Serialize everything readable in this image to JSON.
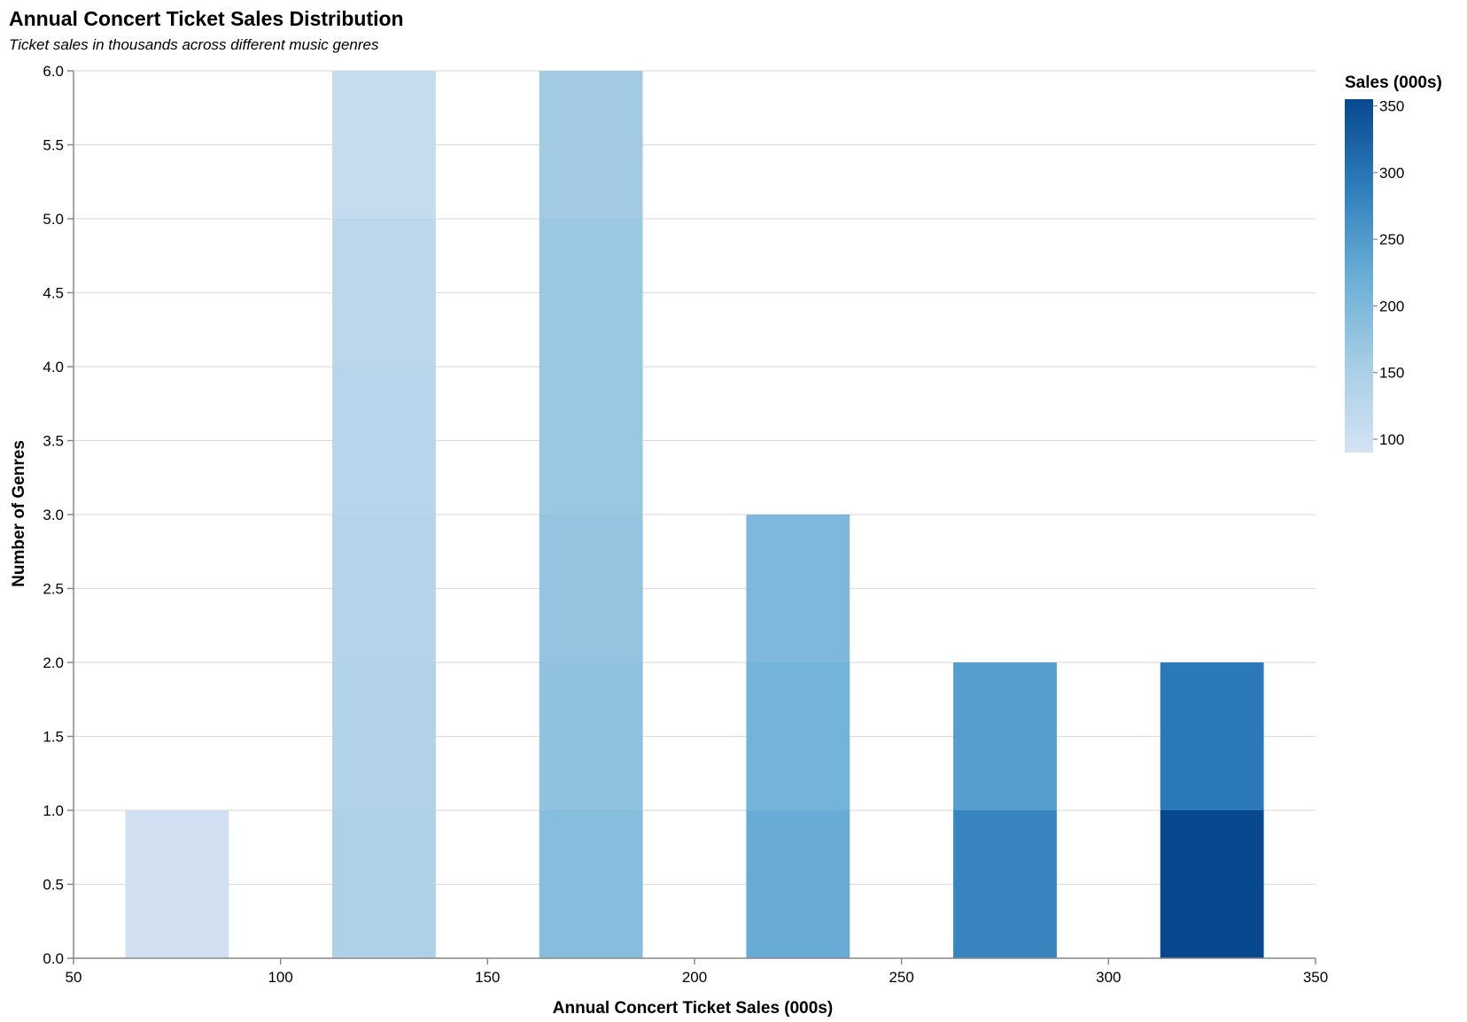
{
  "chart_data": {
    "type": "bar",
    "title": "Annual Concert Ticket Sales Distribution",
    "subtitle": "Ticket sales in thousands across different music genres",
    "xlabel": "Annual Concert Ticket Sales (000s)",
    "ylabel": "Number of Genres",
    "xlim": [
      50,
      350
    ],
    "ylim": [
      0,
      6
    ],
    "x_ticks": [
      "50",
      "100",
      "150",
      "200",
      "250",
      "300",
      "350"
    ],
    "y_ticks": [
      "0.0",
      "0.5",
      "1.0",
      "1.5",
      "2.0",
      "2.5",
      "3.0",
      "3.5",
      "4.0",
      "4.5",
      "5.0",
      "5.5",
      "6.0"
    ],
    "grid": "horizontal",
    "bins": [
      {
        "x_start": 50,
        "x_end": 100,
        "count": 1,
        "segment_sales": [
          95
        ]
      },
      {
        "x_start": 100,
        "x_end": 150,
        "count": 6,
        "segment_sales": [
          145,
          140,
          135,
          130,
          125,
          112
        ]
      },
      {
        "x_start": 150,
        "x_end": 200,
        "count": 6,
        "segment_sales": [
          190,
          180,
          175,
          170,
          168,
          160
        ]
      },
      {
        "x_start": 200,
        "x_end": 250,
        "count": 3,
        "segment_sales": [
          225,
          210,
          200
        ]
      },
      {
        "x_start": 250,
        "x_end": 300,
        "count": 2,
        "segment_sales": [
          280,
          245
        ]
      },
      {
        "x_start": 300,
        "x_end": 350,
        "count": 2,
        "segment_sales": [
          355,
          295
        ]
      }
    ],
    "legend": {
      "title": "Sales (000s)",
      "placement": "right",
      "domain": [
        90,
        355
      ],
      "ticks": [
        "100",
        "150",
        "200",
        "250",
        "300",
        "350"
      ],
      "color_low": "#d4e3f3",
      "color_high": "#08488e"
    }
  }
}
